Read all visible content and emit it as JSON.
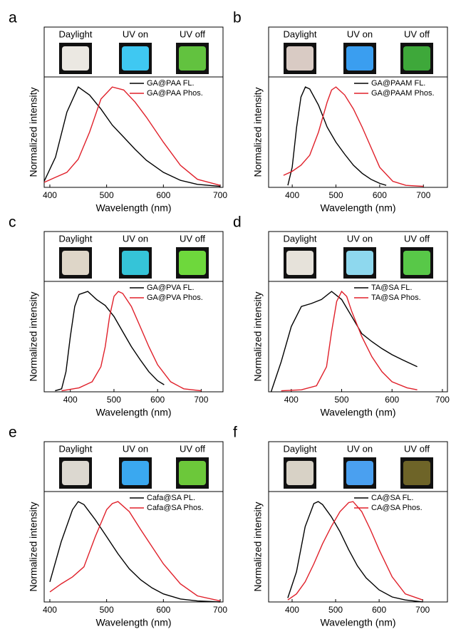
{
  "chart_data": [
    {
      "type": "line",
      "panel": "a",
      "image_labels": [
        "Daylight",
        "UV on",
        "UV off"
      ],
      "xlabel": "Wavelength (nm)",
      "ylabel": "Normalized intensity",
      "xlim": [
        390,
        705
      ],
      "xticks": [
        400,
        500,
        600,
        700
      ],
      "ylim": [
        0,
        1.1
      ],
      "series": [
        {
          "name": "GA@PAA FL.",
          "color": "#000000",
          "x": [
            390,
            410,
            430,
            450,
            470,
            490,
            510,
            530,
            550,
            570,
            600,
            630,
            660,
            700
          ],
          "values": [
            0.06,
            0.3,
            0.75,
            1.0,
            0.92,
            0.78,
            0.62,
            0.5,
            0.38,
            0.27,
            0.15,
            0.07,
            0.03,
            0.01
          ]
        },
        {
          "name": "GA@PAA Phos.",
          "color": "#e0202a",
          "x": [
            390,
            410,
            430,
            450,
            470,
            490,
            510,
            530,
            550,
            570,
            600,
            630,
            660,
            700
          ],
          "values": [
            0.05,
            0.1,
            0.15,
            0.28,
            0.55,
            0.88,
            1.0,
            0.97,
            0.85,
            0.7,
            0.45,
            0.22,
            0.08,
            0.02
          ]
        }
      ]
    },
    {
      "type": "line",
      "panel": "b",
      "image_labels": [
        "Daylight",
        "UV on",
        "UV off"
      ],
      "xlabel": "Wavelength (nm)",
      "ylabel": "Normalized intensity",
      "xlim": [
        346,
        755
      ],
      "xticks": [
        400,
        500,
        600,
        700
      ],
      "ylim": [
        0,
        1.1
      ],
      "series": [
        {
          "name": "GA@PAAM FL.",
          "color": "#000000",
          "x": [
            390,
            400,
            410,
            420,
            430,
            440,
            460,
            480,
            500,
            520,
            540,
            560,
            580,
            600,
            615
          ],
          "values": [
            0.02,
            0.2,
            0.6,
            0.9,
            1.0,
            0.98,
            0.82,
            0.6,
            0.45,
            0.33,
            0.22,
            0.14,
            0.08,
            0.04,
            0.02
          ]
        },
        {
          "name": "GA@PAAM Phos.",
          "color": "#e0202a",
          "x": [
            380,
            400,
            420,
            440,
            460,
            480,
            490,
            500,
            520,
            540,
            560,
            580,
            600,
            630,
            660,
            700
          ],
          "values": [
            0.12,
            0.16,
            0.22,
            0.32,
            0.55,
            0.85,
            0.97,
            1.0,
            0.92,
            0.78,
            0.6,
            0.4,
            0.2,
            0.06,
            0.02,
            0.01
          ]
        }
      ]
    },
    {
      "type": "line",
      "panel": "c",
      "image_labels": [
        "Daylight",
        "UV on",
        "UV off"
      ],
      "xlabel": "Wavelength (nm)",
      "ylabel": "Normalized intensity",
      "xlim": [
        340,
        750
      ],
      "xticks": [
        400,
        500,
        600,
        700
      ],
      "ylim": [
        0,
        1.1
      ],
      "series": [
        {
          "name": "GA@PVA FL.",
          "color": "#000000",
          "x": [
            365,
            380,
            390,
            400,
            410,
            420,
            440,
            460,
            480,
            500,
            520,
            540,
            560,
            580,
            600,
            615
          ],
          "values": [
            0.01,
            0.03,
            0.2,
            0.55,
            0.85,
            0.97,
            1.0,
            0.92,
            0.86,
            0.75,
            0.6,
            0.45,
            0.32,
            0.2,
            0.11,
            0.07
          ]
        },
        {
          "name": "GA@PVA Phos.",
          "color": "#e0202a",
          "x": [
            380,
            420,
            450,
            470,
            480,
            490,
            500,
            510,
            520,
            540,
            560,
            580,
            600,
            630,
            660,
            700
          ],
          "values": [
            0.01,
            0.04,
            0.1,
            0.25,
            0.45,
            0.75,
            0.95,
            1.0,
            0.98,
            0.85,
            0.65,
            0.45,
            0.27,
            0.1,
            0.03,
            0.01
          ]
        }
      ]
    },
    {
      "type": "line",
      "panel": "d",
      "image_labels": [
        "Daylight",
        "UV on",
        "UV off"
      ],
      "xlabel": "Wavelength (nm)",
      "ylabel": "Normalized intensity",
      "xlim": [
        355,
        710
      ],
      "xticks": [
        400,
        500,
        600,
        700
      ],
      "ylim": [
        0,
        1.1
      ],
      "series": [
        {
          "name": "TA@SA FL.",
          "color": "#000000",
          "x": [
            360,
            380,
            400,
            420,
            440,
            460,
            480,
            500,
            520,
            540,
            560,
            580,
            600,
            620,
            650
          ],
          "values": [
            0.0,
            0.3,
            0.65,
            0.85,
            0.88,
            0.92,
            1.0,
            0.92,
            0.75,
            0.58,
            0.5,
            0.43,
            0.37,
            0.32,
            0.25
          ]
        },
        {
          "name": "TA@SA Phos.",
          "color": "#e0202a",
          "x": [
            380,
            420,
            450,
            470,
            480,
            490,
            500,
            510,
            520,
            540,
            560,
            580,
            600,
            630,
            650
          ],
          "values": [
            0.01,
            0.02,
            0.06,
            0.25,
            0.6,
            0.9,
            1.0,
            0.95,
            0.8,
            0.55,
            0.35,
            0.2,
            0.1,
            0.04,
            0.02
          ]
        }
      ]
    },
    {
      "type": "line",
      "panel": "e",
      "image_labels": [
        "Daylight",
        "UV on",
        "UV off"
      ],
      "xlabel": "Wavelength (nm)",
      "ylabel": "Normalized intensity",
      "xlim": [
        390,
        705
      ],
      "xticks": [
        400,
        500,
        600,
        700
      ],
      "ylim": [
        0,
        1.1
      ],
      "series": [
        {
          "name": "Cafa@SA PL.",
          "color": "#000000",
          "x": [
            400,
            420,
            440,
            450,
            460,
            480,
            500,
            520,
            540,
            560,
            580,
            600,
            630,
            660,
            700
          ],
          "values": [
            0.2,
            0.6,
            0.92,
            1.0,
            0.97,
            0.82,
            0.65,
            0.48,
            0.33,
            0.22,
            0.14,
            0.08,
            0.03,
            0.01,
            0.0
          ]
        },
        {
          "name": "Cafa@SA Phos.",
          "color": "#e0202a",
          "x": [
            400,
            420,
            440,
            460,
            480,
            500,
            510,
            520,
            540,
            560,
            580,
            600,
            630,
            660,
            700
          ],
          "values": [
            0.1,
            0.18,
            0.25,
            0.35,
            0.65,
            0.92,
            0.98,
            1.0,
            0.9,
            0.72,
            0.55,
            0.38,
            0.18,
            0.06,
            0.01
          ]
        }
      ]
    },
    {
      "type": "line",
      "panel": "f",
      "image_labels": [
        "Daylight",
        "UV on",
        "UV off"
      ],
      "xlabel": "Wavelength (nm)",
      "ylabel": "Normalized intensity",
      "xlim": [
        346,
        757
      ],
      "xticks": [
        400,
        500,
        600,
        700
      ],
      "ylim": [
        0,
        1.1
      ],
      "series": [
        {
          "name": "CA@SA FL.",
          "color": "#000000",
          "x": [
            390,
            410,
            430,
            450,
            460,
            470,
            490,
            510,
            530,
            550,
            570,
            600,
            630,
            660,
            700
          ],
          "values": [
            0.04,
            0.3,
            0.75,
            0.98,
            1.0,
            0.97,
            0.85,
            0.7,
            0.52,
            0.36,
            0.24,
            0.12,
            0.05,
            0.02,
            0.0
          ]
        },
        {
          "name": "CA@SA Phos.",
          "color": "#e0202a",
          "x": [
            390,
            410,
            430,
            450,
            470,
            490,
            510,
            530,
            540,
            560,
            580,
            600,
            630,
            660,
            700
          ],
          "values": [
            0.02,
            0.08,
            0.2,
            0.38,
            0.58,
            0.75,
            0.9,
            0.99,
            1.0,
            0.9,
            0.72,
            0.52,
            0.25,
            0.08,
            0.02
          ]
        }
      ]
    }
  ]
}
